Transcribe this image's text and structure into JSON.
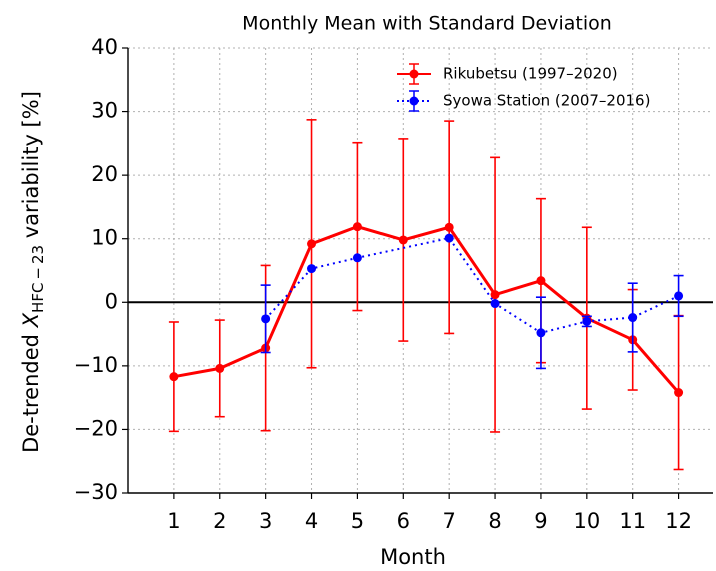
{
  "chart_data": {
    "type": "errorbar-line",
    "title": "Monthly Mean with Standard Deviation",
    "xlabel": "Month",
    "ylabel": {
      "prefix": "De-trended ",
      "symbol": "X",
      "subscript": "HFC − 23",
      "suffix": " variability [%]"
    },
    "xlim": [
      0,
      12.75
    ],
    "xticks": [
      1,
      2,
      3,
      4,
      5,
      6,
      7,
      8,
      9,
      10,
      11,
      12
    ],
    "ylim": [
      -30,
      40
    ],
    "yticks": [
      {
        "value": -30,
        "label": "−30"
      },
      {
        "value": -20,
        "label": "−20"
      },
      {
        "value": -10,
        "label": "−10"
      },
      0,
      10,
      20,
      30,
      40
    ],
    "grid": true,
    "legend": "upper right",
    "series": [
      {
        "name": "Rikubetsu (1997–2020)",
        "color": "#ff0000",
        "linestyle": "solid",
        "x": [
          1,
          2,
          3,
          4,
          5,
          6,
          7,
          8,
          9,
          10,
          11,
          12
        ],
        "values": [
          -11.7,
          -10.4,
          -7.2,
          9.2,
          11.9,
          9.8,
          11.8,
          1.2,
          3.4,
          -2.5,
          -5.9,
          -14.2
        ],
        "errors": [
          8.6,
          7.6,
          13,
          19.5,
          13.2,
          15.9,
          16.7,
          21.6,
          12.9,
          14.3,
          7.9,
          12.1
        ]
      },
      {
        "name": "Syowa Station (2007–2016)",
        "color": "#0000ff",
        "linestyle": "dotted",
        "x": [
          3,
          4,
          5,
          7,
          8,
          9,
          10,
          11,
          12
        ],
        "values": [
          -2.6,
          5.3,
          7.0,
          10.1,
          -0.2,
          -4.8,
          -3.0,
          -2.4,
          1.0
        ],
        "errors": [
          5.3,
          null,
          null,
          null,
          null,
          5.6,
          0.8,
          5.4,
          3.2
        ]
      }
    ]
  }
}
